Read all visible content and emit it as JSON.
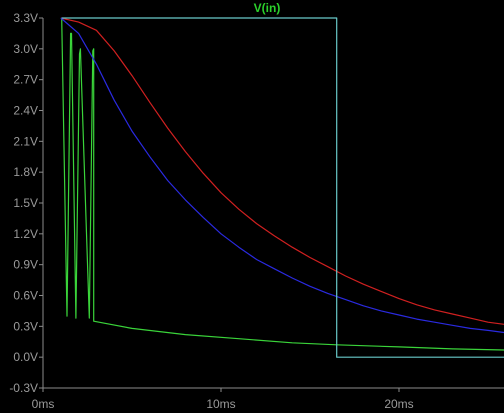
{
  "chart_data": {
    "type": "line",
    "title": "V(in)",
    "xlabel": "",
    "ylabel": "",
    "xlim": [
      0,
      25.9
    ],
    "ylim": [
      -0.3,
      3.3
    ],
    "x_ticks": [
      {
        "value": 0,
        "label": "0ms"
      },
      {
        "value": 10,
        "label": "10ms"
      },
      {
        "value": 20,
        "label": "20ms"
      }
    ],
    "y_ticks": [
      {
        "value": 3.3,
        "label": "3.3V"
      },
      {
        "value": 3.0,
        "label": "3.0V"
      },
      {
        "value": 2.7,
        "label": "2.7V"
      },
      {
        "value": 2.4,
        "label": "2.4V"
      },
      {
        "value": 2.1,
        "label": "2.1V"
      },
      {
        "value": 1.8,
        "label": "1.8V"
      },
      {
        "value": 1.5,
        "label": "1.5V"
      },
      {
        "value": 1.2,
        "label": "1.2V"
      },
      {
        "value": 0.9,
        "label": "0.9V"
      },
      {
        "value": 0.6,
        "label": "0.6V"
      },
      {
        "value": 0.3,
        "label": "0.3V"
      },
      {
        "value": 0.0,
        "label": "0.0V"
      },
      {
        "value": -0.3,
        "label": "-0.3V"
      }
    ],
    "grid": false,
    "colors": {
      "background": "#000000",
      "axes": "#8c8c8c",
      "ticks": "#9a9a9a",
      "title": "#2bd02b"
    },
    "series": [
      {
        "color": "#3ad43a",
        "x": [
          1.05,
          1.35,
          1.35,
          1.55,
          1.6,
          1.85,
          1.85,
          2.05,
          2.1,
          2.6,
          2.6,
          2.8,
          2.85,
          2.85,
          5,
          8,
          11,
          14,
          16.5,
          20,
          23,
          25.9
        ],
        "y": [
          3.3,
          0.4,
          0.4,
          3.15,
          3.15,
          0.38,
          0.38,
          2.95,
          3.0,
          0.38,
          0.38,
          2.98,
          3.0,
          0.35,
          0.28,
          0.22,
          0.18,
          0.14,
          0.12,
          0.1,
          0.08,
          0.07
        ]
      },
      {
        "color": "#d02020",
        "x": [
          1.0,
          2,
          3,
          4,
          5,
          6,
          7,
          8,
          9,
          10,
          11,
          12,
          13,
          14,
          15,
          16,
          17,
          18,
          19,
          20,
          21,
          22,
          23,
          24,
          25,
          25.9
        ],
        "y": [
          3.3,
          3.26,
          3.18,
          2.98,
          2.74,
          2.48,
          2.23,
          2.0,
          1.79,
          1.6,
          1.44,
          1.3,
          1.18,
          1.07,
          0.97,
          0.88,
          0.79,
          0.71,
          0.64,
          0.57,
          0.51,
          0.46,
          0.42,
          0.38,
          0.34,
          0.32
        ]
      },
      {
        "color": "#2a2ae0",
        "x": [
          1.0,
          2,
          3,
          4,
          5,
          6,
          7,
          8,
          9,
          10,
          11,
          12,
          13,
          14,
          15,
          16,
          17,
          18,
          19,
          20,
          21,
          22,
          23,
          24,
          25,
          25.9
        ],
        "y": [
          3.3,
          3.15,
          2.85,
          2.5,
          2.2,
          1.95,
          1.72,
          1.53,
          1.36,
          1.2,
          1.07,
          0.95,
          0.86,
          0.77,
          0.69,
          0.62,
          0.56,
          0.5,
          0.45,
          0.41,
          0.37,
          0.34,
          0.31,
          0.28,
          0.26,
          0.24
        ]
      },
      {
        "color": "#69c9c9",
        "x": [
          1.05,
          16.5,
          16.5,
          25.9
        ],
        "y": [
          3.3,
          3.3,
          0.0,
          0.0
        ]
      }
    ]
  }
}
